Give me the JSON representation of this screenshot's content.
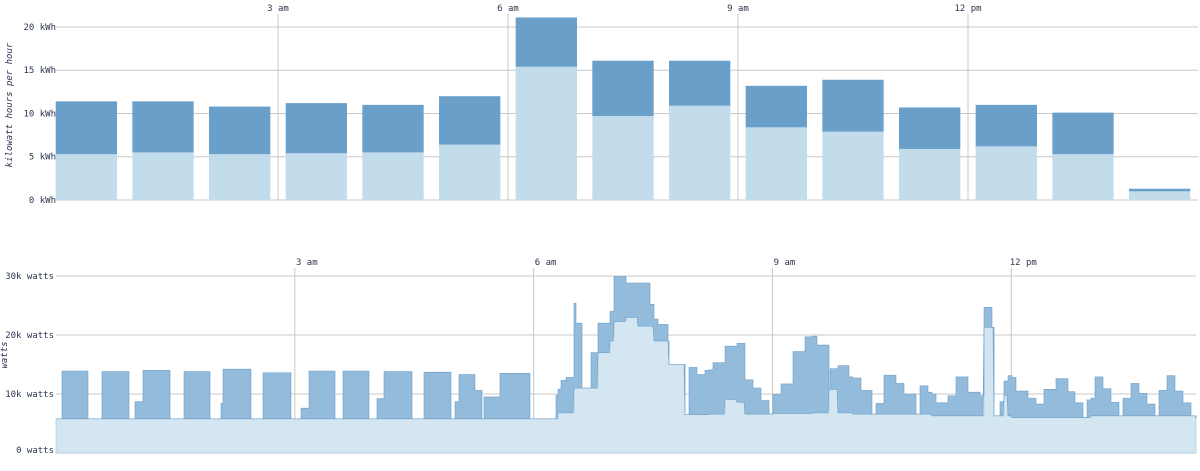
{
  "colors": {
    "upper_dark": "#6a9fca",
    "upper_light": "#c2dcec",
    "lower_dark": "#93bbdc",
    "lower_light": "#d3e6f1",
    "grid": "#c8c8c8",
    "text": "#2a3550"
  },
  "chart_data": [
    {
      "type": "bar",
      "stacked": true,
      "ylabel": "kilowatt hours per hour",
      "ylim": [
        0,
        21.5
      ],
      "yticks": [
        0,
        5,
        10,
        15,
        20
      ],
      "ytick_labels": [
        "0 kWh",
        "5 kWh",
        "10 kWh",
        "15 kWh",
        "20 kWh"
      ],
      "x_unit": "hour of day",
      "xlim": [
        0,
        15
      ],
      "xticks": [
        3,
        6,
        9,
        12
      ],
      "xtick_labels": [
        "3 am",
        "6 am",
        "9 am",
        "12 pm"
      ],
      "bar_hours": [
        0.5,
        1.5,
        2.5,
        3.5,
        4.5,
        5.5,
        6.5,
        7.5,
        8.5,
        9.5,
        10.5,
        11.5,
        12.5,
        13.5
      ],
      "series": [
        {
          "values": [
            5.3,
            5.5,
            5.3,
            5.4,
            5.5,
            6.4,
            15.4,
            9.7,
            10.9,
            8.4,
            7.9,
            5.9,
            6.2,
            5.3
          ]
        },
        {
          "values": [
            6.1,
            5.9,
            5.5,
            5.8,
            5.5,
            5.6,
            5.7,
            6.4,
            5.2,
            4.8,
            6.0,
            4.8,
            4.8,
            4.8
          ]
        }
      ],
      "partial_bar": {
        "hour": 14.5,
        "values": [
          1.0,
          0.3
        ]
      },
      "grid": true
    },
    {
      "type": "area",
      "step": true,
      "stacked": true,
      "ylabel": "watts",
      "ylim": [
        0,
        30000
      ],
      "yticks": [
        0,
        10000,
        20000,
        30000
      ],
      "ytick_labels": [
        "0 watts",
        "10k watts",
        "20k watts",
        "30k watts"
      ],
      "x_unit": "hour of day",
      "xlim": [
        0,
        14.32
      ],
      "xticks": [
        3,
        6,
        9,
        12
      ],
      "xtick_labels": [
        "3 am",
        "6 am",
        "9 am",
        "12 pm"
      ],
      "base_breakpoints": [
        [
          0,
          5800
        ],
        [
          5.5,
          5800
        ],
        [
          6.3,
          6800
        ],
        [
          6.5,
          11000
        ],
        [
          6.8,
          17000
        ],
        [
          7.0,
          18800
        ],
        [
          7.3,
          21500
        ],
        [
          7.5,
          19000
        ],
        [
          7.7,
          15000
        ],
        [
          7.9,
          6500
        ],
        [
          8.2,
          6600
        ],
        [
          9.0,
          6700
        ],
        [
          9.5,
          6800
        ],
        [
          10.0,
          6600
        ],
        [
          11.0,
          6300
        ],
        [
          12.0,
          6000
        ],
        [
          13.0,
          6300
        ],
        [
          14.32,
          5900
        ]
      ],
      "spikes": [
        [
          0.07,
          0.4,
          8100
        ],
        [
          0.57,
          0.91,
          8000
        ],
        [
          0.99,
          1.09,
          2900
        ],
        [
          1.09,
          1.43,
          8200
        ],
        [
          1.6,
          1.93,
          8000
        ],
        [
          2.07,
          2.09,
          2600
        ],
        [
          2.09,
          2.44,
          8400
        ],
        [
          2.6,
          2.95,
          7800
        ],
        [
          3.07,
          3.17,
          1800
        ],
        [
          3.17,
          3.5,
          8100
        ],
        [
          3.6,
          3.93,
          8100
        ],
        [
          4.02,
          4.12,
          3400
        ],
        [
          4.12,
          4.46,
          8000
        ],
        [
          4.62,
          4.96,
          7900
        ],
        [
          5.0,
          5.05,
          2900
        ],
        [
          5.05,
          5.26,
          7500
        ],
        [
          5.26,
          5.35,
          4800
        ],
        [
          5.37,
          5.57,
          3700
        ],
        [
          5.57,
          5.95,
          7700
        ],
        [
          6.28,
          6.34,
          4000
        ],
        [
          6.34,
          6.4,
          5500
        ],
        [
          6.4,
          6.5,
          6000
        ],
        [
          6.5,
          6.53,
          14400
        ],
        [
          6.53,
          6.6,
          11000
        ],
        [
          6.72,
          6.8,
          6000
        ],
        [
          6.8,
          7.0,
          5000
        ],
        [
          7.0,
          7.15,
          7600
        ],
        [
          7.15,
          7.3,
          5800
        ],
        [
          7.3,
          7.45,
          7300
        ],
        [
          7.45,
          7.55,
          3700
        ],
        [
          7.55,
          7.68,
          2800
        ],
        [
          7.95,
          8.05,
          8000
        ],
        [
          8.05,
          8.15,
          6800
        ],
        [
          8.15,
          8.25,
          7500
        ],
        [
          8.25,
          8.4,
          8700
        ],
        [
          8.4,
          8.48,
          9000
        ],
        [
          8.48,
          8.55,
          9000
        ],
        [
          8.55,
          8.65,
          10000
        ],
        [
          8.65,
          8.75,
          5800
        ],
        [
          8.75,
          8.85,
          4400
        ],
        [
          8.85,
          8.95,
          2300
        ],
        [
          9.0,
          9.1,
          3200
        ],
        [
          9.1,
          9.25,
          5000
        ],
        [
          9.25,
          9.4,
          10500
        ],
        [
          9.4,
          9.55,
          13000
        ],
        [
          9.55,
          9.7,
          11500
        ],
        [
          9.72,
          9.82,
          3500
        ],
        [
          9.82,
          9.95,
          8000
        ],
        [
          9.95,
          10.1,
          6100
        ],
        [
          10.1,
          10.25,
          4000
        ],
        [
          10.3,
          10.4,
          1800
        ],
        [
          10.4,
          10.55,
          6600
        ],
        [
          10.55,
          10.65,
          5200
        ],
        [
          10.65,
          10.8,
          3400
        ],
        [
          10.85,
          10.95,
          4800
        ],
        [
          10.95,
          11.05,
          3700
        ],
        [
          11.05,
          11.2,
          2200
        ],
        [
          11.2,
          11.3,
          3400
        ],
        [
          11.3,
          11.45,
          6600
        ],
        [
          11.45,
          11.6,
          4000
        ],
        [
          11.6,
          11.75,
          3400
        ],
        [
          11.85,
          11.95,
          2400
        ],
        [
          11.95,
          12.05,
          6800
        ],
        [
          12.05,
          12.2,
          4500
        ],
        [
          12.2,
          12.3,
          3300
        ],
        [
          12.3,
          12.4,
          2300
        ],
        [
          12.4,
          12.55,
          4800
        ],
        [
          12.55,
          12.7,
          6600
        ],
        [
          12.7,
          12.8,
          4400
        ],
        [
          12.8,
          12.9,
          2500
        ],
        [
          12.95,
          13.05,
          3000
        ],
        [
          13.05,
          13.15,
          6600
        ],
        [
          13.15,
          13.25,
          4600
        ],
        [
          13.25,
          13.35,
          2300
        ],
        [
          13.4,
          13.5,
          3000
        ],
        [
          13.5,
          13.6,
          5500
        ],
        [
          13.6,
          13.7,
          3800
        ],
        [
          13.7,
          13.8,
          2000
        ],
        [
          13.85,
          13.95,
          4300
        ],
        [
          13.95,
          14.05,
          6800
        ],
        [
          14.05,
          14.15,
          4200
        ],
        [
          14.15,
          14.25,
          2200
        ]
      ],
      "base_extras": [
        [
          6.95,
          7.0,
          2000
        ],
        [
          7.0,
          7.15,
          3500
        ],
        [
          7.15,
          7.3,
          4200
        ],
        [
          8.4,
          8.55,
          2500
        ],
        [
          8.55,
          8.65,
          2000
        ],
        [
          9.7,
          9.82,
          4000
        ],
        [
          11.65,
          11.78,
          15000
        ],
        [
          11.9,
          11.95,
          3500
        ]
      ],
      "grid": true
    }
  ]
}
